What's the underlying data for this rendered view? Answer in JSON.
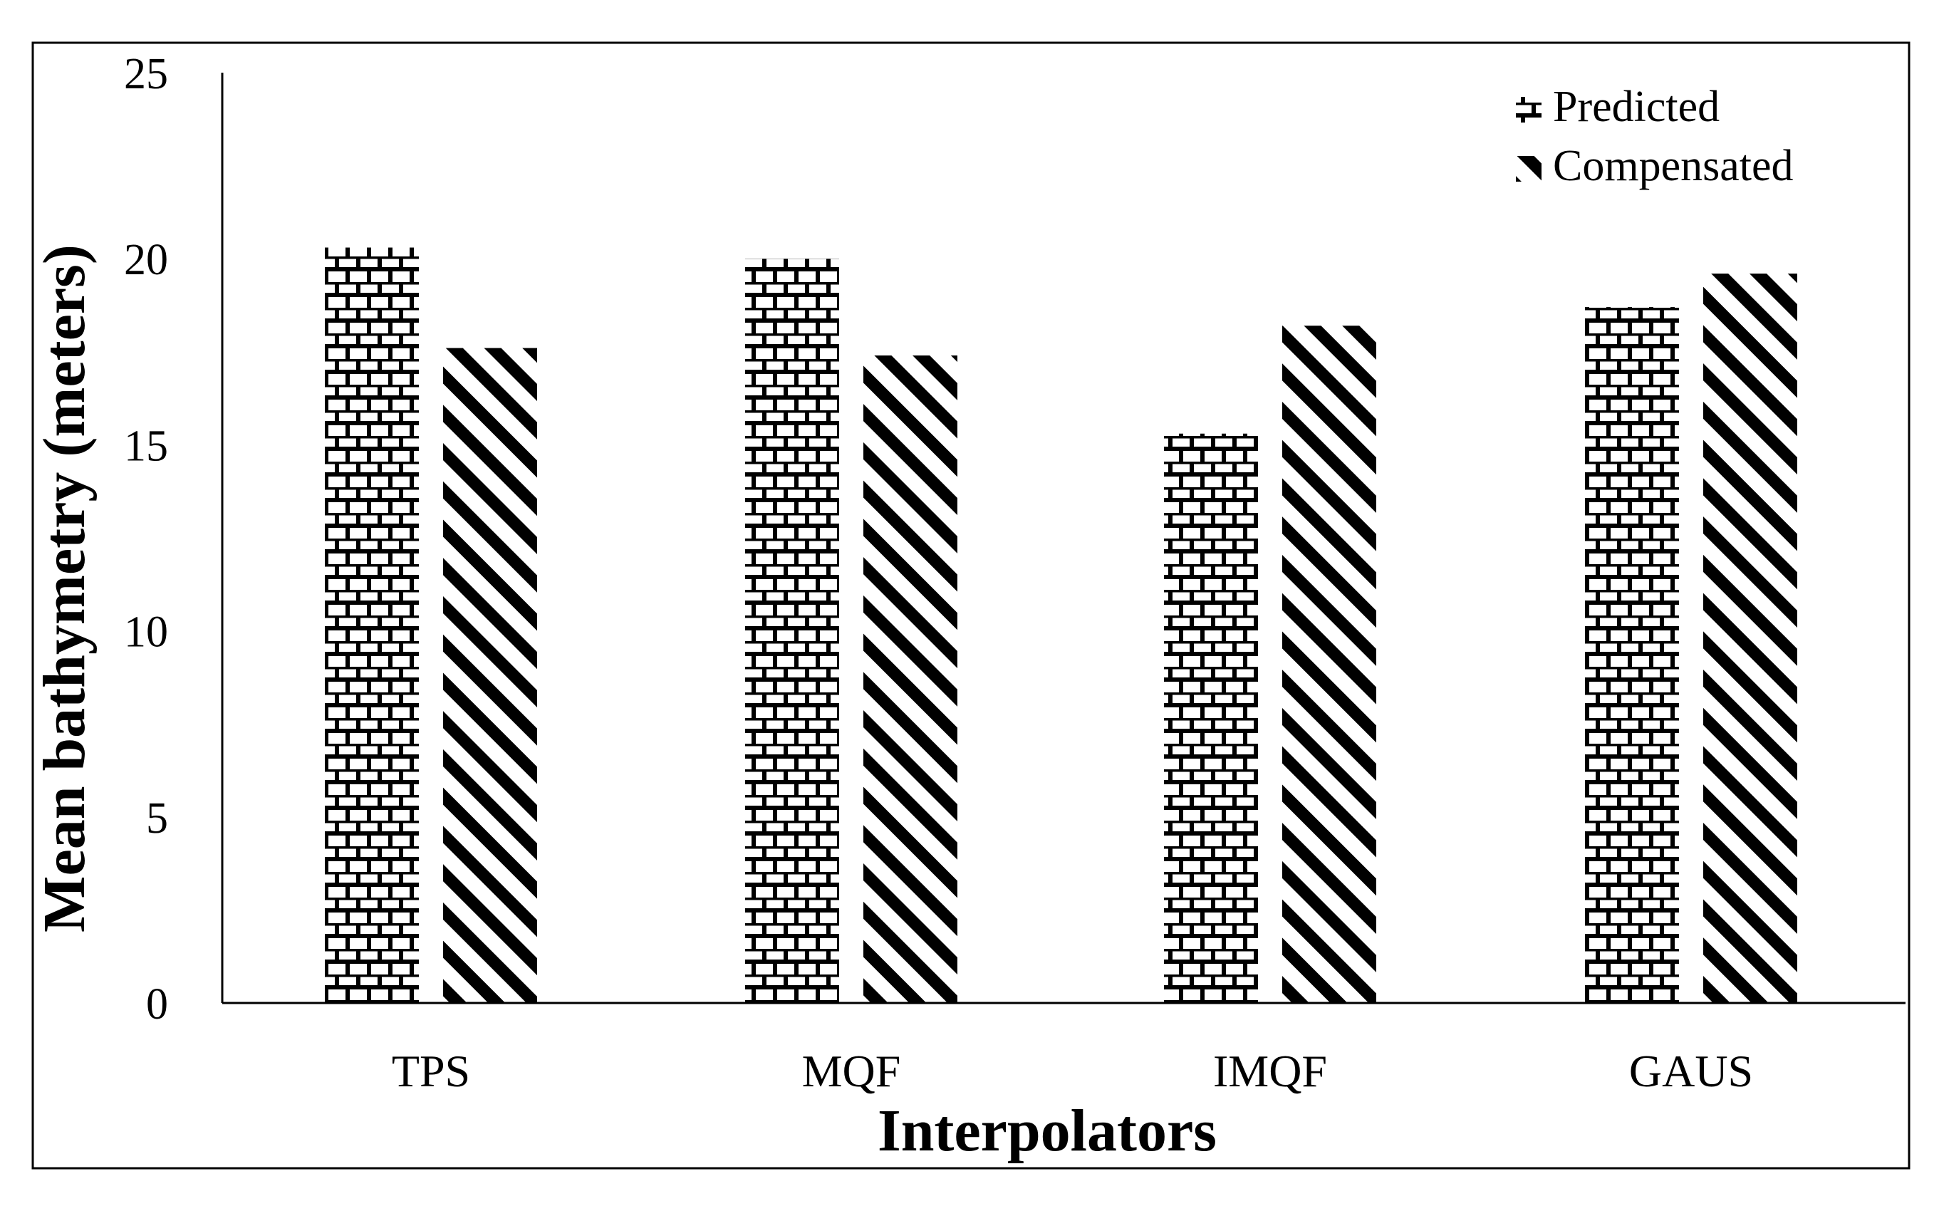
{
  "chart_data": {
    "type": "bar",
    "title": "",
    "xlabel": "Interpolators",
    "ylabel": "Mean bathymetry (meters)",
    "categories": [
      "TPS",
      "MQF",
      "IMQF",
      "GAUS"
    ],
    "series": [
      {
        "name": "Predicted",
        "pattern": "brick",
        "values": [
          20.3,
          20.0,
          15.3,
          18.7
        ]
      },
      {
        "name": "Compensated",
        "pattern": "diagonal-stripes",
        "values": [
          17.6,
          17.4,
          18.2,
          19.6
        ]
      }
    ],
    "ylim": [
      0,
      25
    ],
    "yticks": [
      0,
      5,
      10,
      15,
      20,
      25
    ],
    "grid": false,
    "legend_position": "top-right",
    "colors": {
      "ink": "#000000",
      "background": "#ffffff"
    }
  }
}
